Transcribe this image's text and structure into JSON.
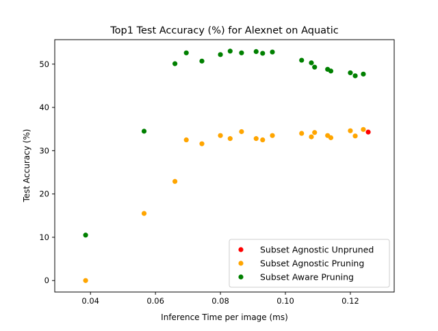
{
  "chart_data": {
    "type": "scatter",
    "title": "Top1 Test Accuracy (%) for Alexnet on Aquatic",
    "xlabel": "Inference Time per image (ms)",
    "ylabel": "Test Accuracy (%)",
    "xlim": [
      0.029,
      0.1335
    ],
    "ylim": [
      -2.65,
      55.65
    ],
    "xticks": [
      0.04,
      0.06,
      0.08,
      0.1,
      0.12
    ],
    "xtick_labels": [
      "0.04",
      "0.06",
      "0.08",
      "0.10",
      "0.12"
    ],
    "yticks": [
      0,
      10,
      20,
      30,
      40,
      50
    ],
    "ytick_labels": [
      "0",
      "10",
      "20",
      "30",
      "40",
      "50"
    ],
    "grid": false,
    "legend_position": "lower-right",
    "series": [
      {
        "name": "Subset Agnostic Unpruned",
        "color": "#ff0000",
        "points": [
          [
            0.1255,
            34.3
          ]
        ]
      },
      {
        "name": "Subset Agnostic Pruning",
        "color": "#ffa500",
        "points": [
          [
            0.0385,
            0.0
          ],
          [
            0.0565,
            15.5
          ],
          [
            0.066,
            22.9
          ],
          [
            0.0695,
            32.5
          ],
          [
            0.0743,
            31.6
          ],
          [
            0.08,
            33.5
          ],
          [
            0.083,
            32.8
          ],
          [
            0.0865,
            34.4
          ],
          [
            0.091,
            32.8
          ],
          [
            0.093,
            32.5
          ],
          [
            0.096,
            33.5
          ],
          [
            0.105,
            34.0
          ],
          [
            0.108,
            33.2
          ],
          [
            0.109,
            34.2
          ],
          [
            0.113,
            33.5
          ],
          [
            0.114,
            33.0
          ],
          [
            0.12,
            34.6
          ],
          [
            0.1215,
            33.4
          ],
          [
            0.124,
            34.9
          ]
        ]
      },
      {
        "name": "Subset Aware Pruning",
        "color": "#008000",
        "points": [
          [
            0.0385,
            10.5
          ],
          [
            0.0565,
            34.5
          ],
          [
            0.066,
            50.1
          ],
          [
            0.0695,
            52.6
          ],
          [
            0.0743,
            50.7
          ],
          [
            0.08,
            52.2
          ],
          [
            0.083,
            53.0
          ],
          [
            0.0865,
            52.6
          ],
          [
            0.091,
            52.9
          ],
          [
            0.093,
            52.5
          ],
          [
            0.096,
            52.8
          ],
          [
            0.105,
            50.9
          ],
          [
            0.108,
            50.3
          ],
          [
            0.109,
            49.3
          ],
          [
            0.113,
            48.8
          ],
          [
            0.114,
            48.4
          ],
          [
            0.12,
            48.0
          ],
          [
            0.1215,
            47.3
          ],
          [
            0.124,
            47.7
          ]
        ]
      }
    ]
  }
}
